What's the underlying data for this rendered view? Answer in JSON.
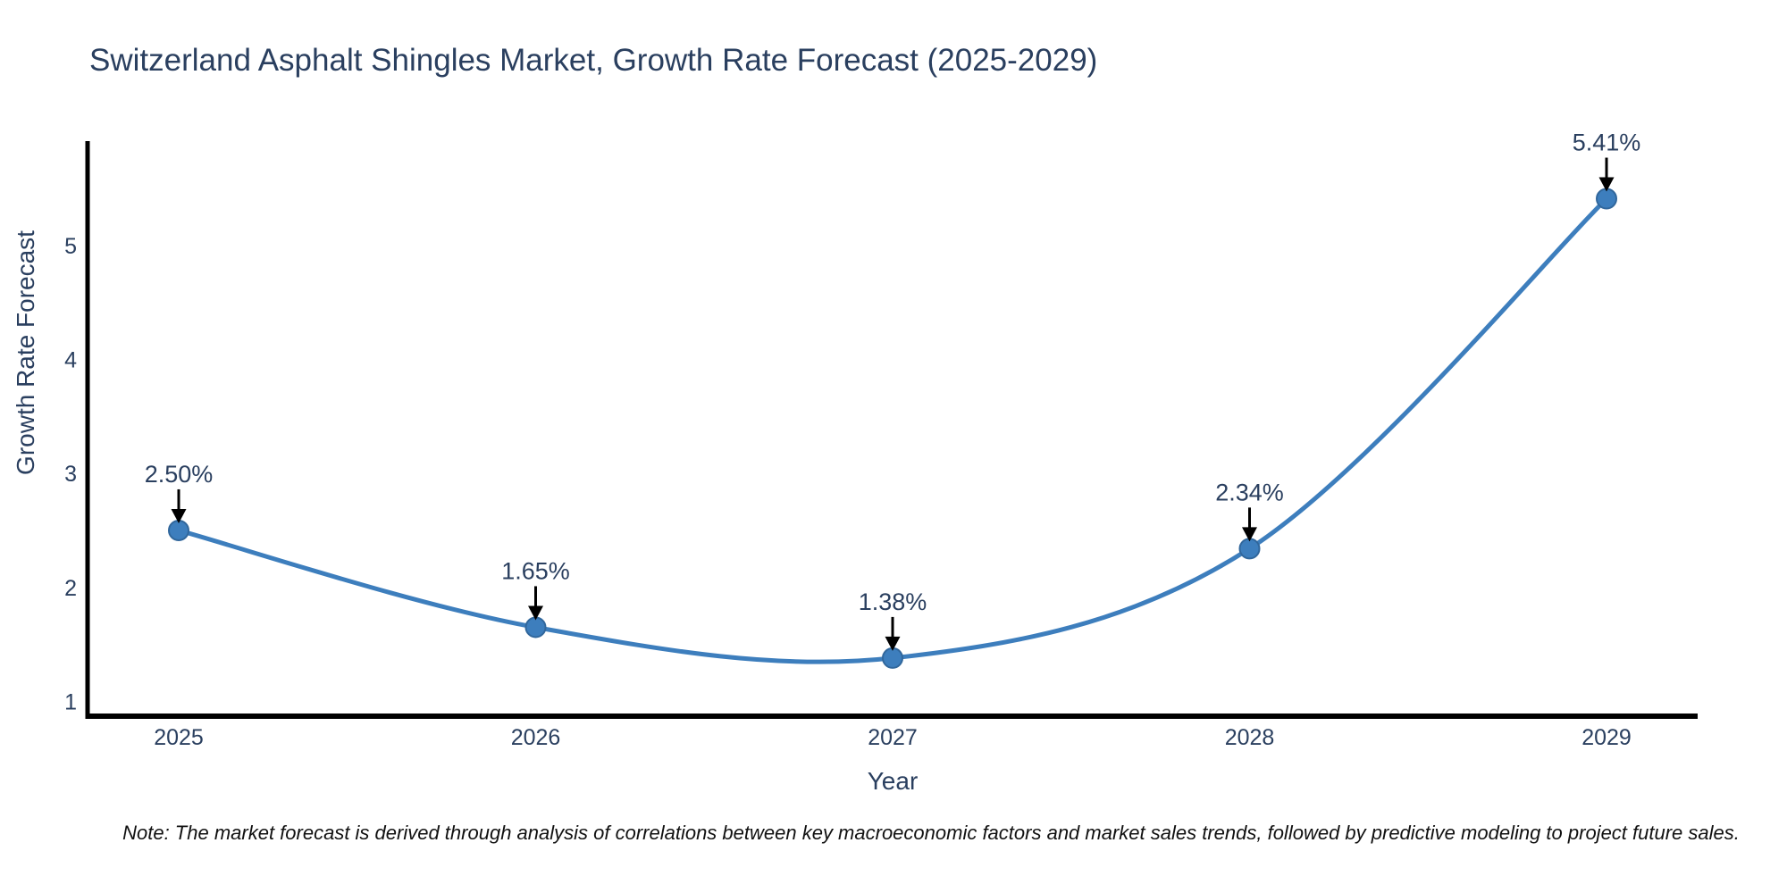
{
  "page": {
    "background": "#ffffff"
  },
  "chart_data": {
    "type": "line",
    "title": "Switzerland Asphalt Shingles Market, Growth Rate Forecast (2025-2029)",
    "xlabel": "Year",
    "ylabel": "Growth Rate Forecast",
    "categories": [
      "2025",
      "2026",
      "2027",
      "2028",
      "2029"
    ],
    "values": [
      2.5,
      1.65,
      1.38,
      2.34,
      5.41
    ],
    "point_labels": [
      "2.50%",
      "1.65%",
      "1.38%",
      "2.34%",
      "5.41%"
    ],
    "yticks": [
      1,
      2,
      3,
      4,
      5
    ],
    "ylim": [
      0.87,
      5.9
    ],
    "line_shape": "spline",
    "markers": true,
    "grid": false,
    "legend": "none",
    "annotation_style": "value-label-with-down-arrow",
    "colors": {
      "line": "#3d7ebd",
      "marker_fill": "#3d7ebd",
      "marker_edge": "#31679c",
      "axis_spine": "#000000",
      "arrow": "#000000",
      "title_text": "#2a3f5f",
      "tick_text": "#2a3f5f",
      "note_text": "#111111"
    },
    "note": "Note: The market forecast is derived through analysis of correlations between key macroeconomic factors and market sales trends, followed by predictive modeling to project future sales."
  }
}
